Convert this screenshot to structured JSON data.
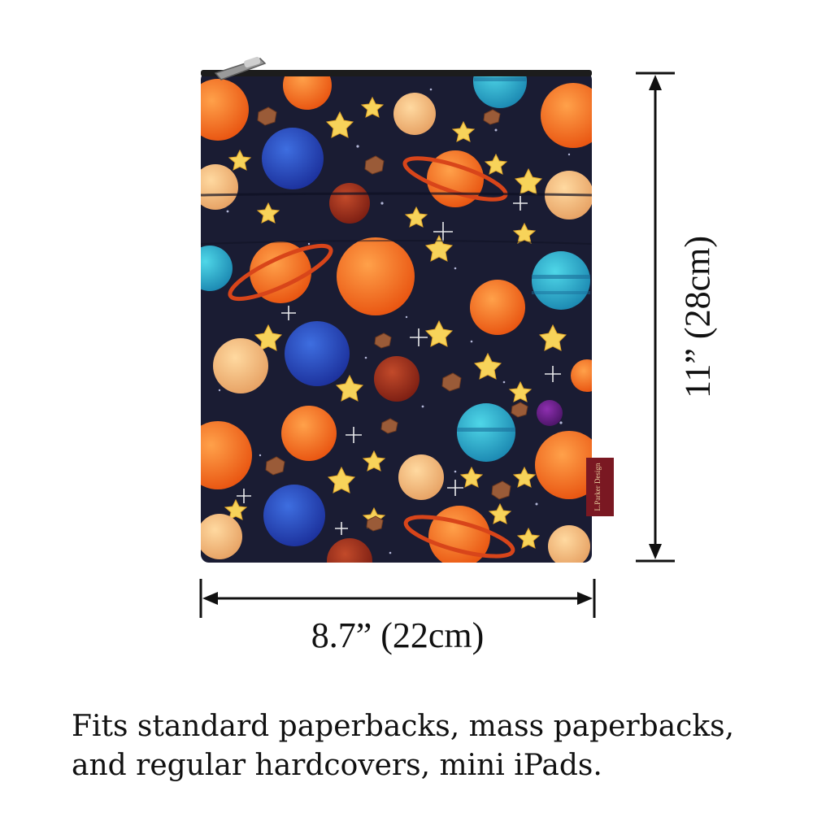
{
  "product": {
    "pattern_icon": "outer-space-planets-and-stars-pattern",
    "tag_text": "L.Parker Design",
    "colors": {
      "background": "#1a1c33",
      "zipper": "#1c1c1c",
      "tag": "#7a1822"
    }
  },
  "dimensions": {
    "width_label": "8.7” (22cm)",
    "height_label": "11” (28cm)"
  },
  "caption": {
    "line1": "Fits standard paperbacks, mass paperbacks,",
    "line2": "and regular hardcovers, mini iPads."
  }
}
